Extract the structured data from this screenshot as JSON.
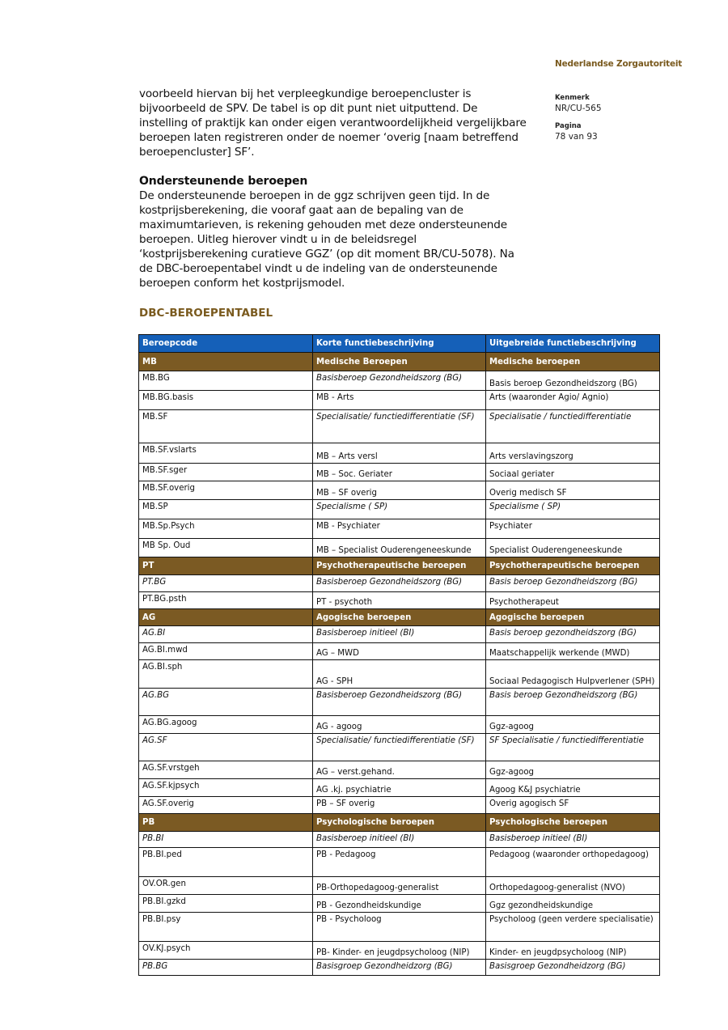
{
  "header": {
    "organisation": "Nederlandse Zorgautoriteit"
  },
  "sidebar": {
    "kenmerk_label": "Kenmerk",
    "kenmerk_value": "NR/CU-565",
    "pagina_label": "Pagina",
    "pagina_value": "78 van 93"
  },
  "body": {
    "paragraph1": "voorbeeld hiervan bij het verpleegkundige beroepencluster is bijvoorbeeld de SPV. De tabel is op dit punt niet uitputtend. De instelling of praktijk kan onder eigen verantwoordelijkheid vergelijkbare beroepen laten registreren onder de noemer ‘overig [naam betreffend beroepencluster] SF’.",
    "heading": "Ondersteunende beroepen",
    "paragraph2": "De ondersteunende beroepen in de ggz schrijven geen tijd. In de kostprijsberekening, die vooraf gaat aan de bepaling van de maximumtarieven, is rekening gehouden met deze ondersteunende beroepen.  Uitleg hierover vindt u in de beleidsregel ‘kostprijsberekening curatieve GGZ’ (op dit moment BR/CU-5078). Na de DBC-beroepentabel vindt u de indeling van de ondersteunende beroepen conform het kostprijsmodel."
  },
  "table": {
    "title": "DBC-BEROEPENTABEL",
    "colors": {
      "header": "#1560b8",
      "section": "#7b5a23"
    },
    "columns": [
      "Beroepcode",
      "Korte functiebeschrijving",
      "Uitgebreide functiebeschrijving"
    ],
    "rows": [
      {
        "type": "section",
        "cells": [
          "MB",
          "Medische Beroepen",
          "Medische beroepen"
        ]
      },
      {
        "cells": [
          "MB.BG",
          "Basisberoep Gezondheidszorg (BG)",
          "Basis beroep Gezondheidszorg (BG)"
        ],
        "italic": [
          false,
          true,
          false
        ]
      },
      {
        "cells": [
          "MB.BG.basis",
          "MB - Arts",
          "Arts (waaronder Agio/ Agnio)"
        ]
      },
      {
        "cells": [
          "MB.SF",
          "Specialisatie/ functiedifferentiatie (SF)",
          "Specialisatie / functiedifferentiatie"
        ],
        "italic": [
          false,
          true,
          true
        ]
      },
      {
        "cells": [
          "MB.SF.vslarts",
          "MB – Arts versl",
          "Arts verslavingszorg"
        ]
      },
      {
        "cells": [
          "MB.SF.sger",
          "MB – Soc. Geriater",
          "Sociaal geriater"
        ]
      },
      {
        "cells": [
          "MB.SF.overig",
          "MB – SF overig",
          "Overig medisch SF"
        ]
      },
      {
        "cells": [
          "MB.SP",
          "Specialisme ( SP)",
          "Specialisme ( SP)"
        ],
        "italic": [
          false,
          true,
          true
        ]
      },
      {
        "cells": [
          "MB.Sp.Psych",
          "MB - Psychiater",
          "Psychiater"
        ]
      },
      {
        "cells": [
          "MB Sp. Oud",
          "MB – Specialist Ouderengeneeskunde",
          "Specialist Ouderengeneeskunde"
        ]
      },
      {
        "type": "section",
        "cells": [
          "PT",
          "Psychotherapeutische beroepen",
          "Psychotherapeutische beroepen"
        ]
      },
      {
        "cells": [
          "PT.BG",
          "Basisberoep Gezondheidszorg (BG)",
          "Basis beroep Gezondheidszorg (BG)"
        ],
        "italic": [
          true,
          true,
          true
        ]
      },
      {
        "cells": [
          "PT.BG.psth",
          "PT - psychoth",
          "Psychotherapeut"
        ]
      },
      {
        "type": "section",
        "cells": [
          "AG",
          "Agogische beroepen",
          "Agogische beroepen"
        ]
      },
      {
        "cells": [
          "AG.BI",
          "Basisberoep initieel (BI)",
          "Basis beroep gezondheidszorg (BG)"
        ],
        "italic": [
          true,
          true,
          true
        ]
      },
      {
        "cells": [
          "AG.BI.mwd",
          "AG – MWD",
          "Maatschappelijk werkende (MWD)"
        ]
      },
      {
        "cells": [
          "AG.BI.sph",
          "AG - SPH",
          "Sociaal Pedagogisch Hulpverlener (SPH)"
        ]
      },
      {
        "cells": [
          "AG.BG",
          "Basisberoep Gezondheidszorg (BG)",
          "Basis beroep Gezondheidszorg (BG)"
        ],
        "italic": [
          true,
          true,
          true
        ]
      },
      {
        "cells": [
          "AG.BG.agoog",
          " AG - agoog",
          "Ggz-agoog"
        ]
      },
      {
        "cells": [
          "AG.SF",
          "Specialisatie/ functiedifferentiatie (SF)",
          "SF Specialisatie / functiedifferentiatie"
        ],
        "italic": [
          true,
          true,
          true
        ]
      },
      {
        "cells": [
          "AG.SF.vrstgeh",
          "AG – verst.gehand.",
          "Ggz-agoog"
        ]
      },
      {
        "cells": [
          "AG.SF.kjpsych",
          "AG .kj. psychiatrie",
          "Agoog K&J psychiatrie"
        ]
      },
      {
        "cells": [
          "AG.SF.overig",
          "PB – SF overig",
          "Overig agogisch SF"
        ]
      },
      {
        "type": "section",
        "cells": [
          "PB",
          "Psychologische beroepen",
          "Psychologische beroepen"
        ]
      },
      {
        "cells": [
          "PB.BI",
          "Basisberoep initieel (BI)",
          "Basisberoep initieel (BI)"
        ],
        "italic": [
          true,
          true,
          true
        ]
      },
      {
        "cells": [
          "PB.BI.ped",
          "PB - Pedagoog",
          "Pedagoog (waaronder orthopedagoog)"
        ]
      },
      {
        "cells": [
          "OV.OR.gen",
          "PB-Orthopedagoog-generalist",
          "Orthopedagoog-generalist (NVO)"
        ]
      },
      {
        "cells": [
          "PB.BI.gzkd",
          "PB - Gezondheidskundige",
          "Ggz gezondheidskundige"
        ]
      },
      {
        "cells": [
          "PB.BI.psy",
          "PB - Psycholoog",
          "Psycholoog (geen verdere specialisatie)"
        ]
      },
      {
        "cells": [
          "OV.KJ.psych",
          "PB- Kinder- en jeugdpsycholoog (NIP)",
          "Kinder- en jeugdpsycholoog (NIP)"
        ]
      },
      {
        "cells": [
          "PB.BG",
          "Basisgroep Gezondheidzorg (BG)",
          "Basisgroep Gezondheidzorg (BG)"
        ],
        "italic": [
          true,
          true,
          true
        ]
      }
    ]
  }
}
